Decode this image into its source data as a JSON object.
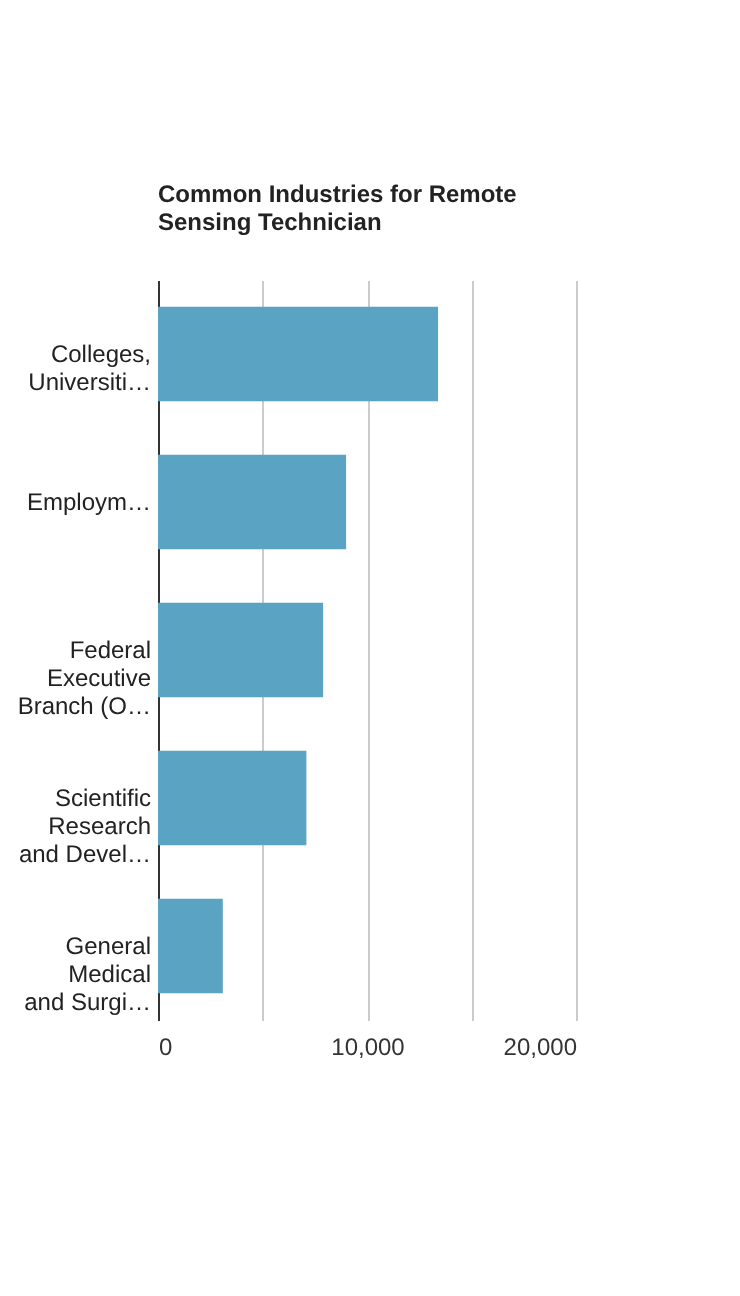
{
  "chart_data": {
    "type": "bar",
    "orientation": "horizontal",
    "title": "Common Industries for Remote Sensing Technician",
    "categories": [
      "Colleges, Universiti…",
      "Employm…",
      "Federal Executive Branch (O…",
      "Scientific Research and Devel…",
      "General Medical and Surgi…"
    ],
    "values": [
      13400,
      9000,
      7900,
      7100,
      3100
    ],
    "color": "#5ba3c2",
    "xlim": [
      0,
      20000
    ],
    "xticks": [
      0,
      {
        "value": 5000,
        "label": null
      },
      {
        "value": 10000,
        "label": "10,000"
      },
      {
        "value": 15000,
        "label": null
      },
      {
        "value": 20000,
        "label": "20,000"
      }
    ],
    "grid": "x"
  }
}
